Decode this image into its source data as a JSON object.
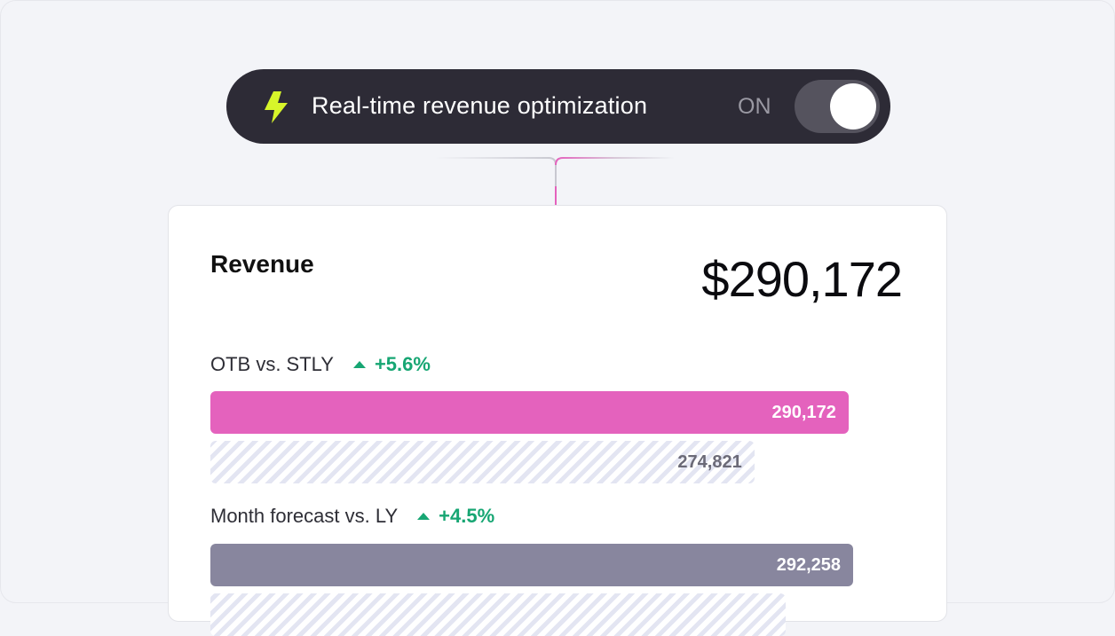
{
  "banner": {
    "title": "Real-time revenue optimization",
    "toggle_state_label": "ON",
    "toggle_on": true,
    "icon": "lightning-bolt-icon",
    "icon_color": "#d7f52a"
  },
  "card": {
    "title": "Revenue",
    "total": "$290,172",
    "metrics": [
      {
        "label": "OTB vs. STLY",
        "delta": "+5.6%",
        "primary": {
          "value": 290172,
          "label": "290,172",
          "color": "#e462bd"
        },
        "comparison": {
          "value": 274821,
          "label": "274,821"
        }
      },
      {
        "label": "Month forecast vs. LY",
        "delta": "+4.5%",
        "primary": {
          "value": 292258,
          "label": "292,258",
          "color": "#88869e"
        },
        "comparison": {
          "value": null,
          "label": ""
        }
      }
    ]
  },
  "colors": {
    "positive": "#17a673",
    "banner_bg": "#2d2b36"
  }
}
